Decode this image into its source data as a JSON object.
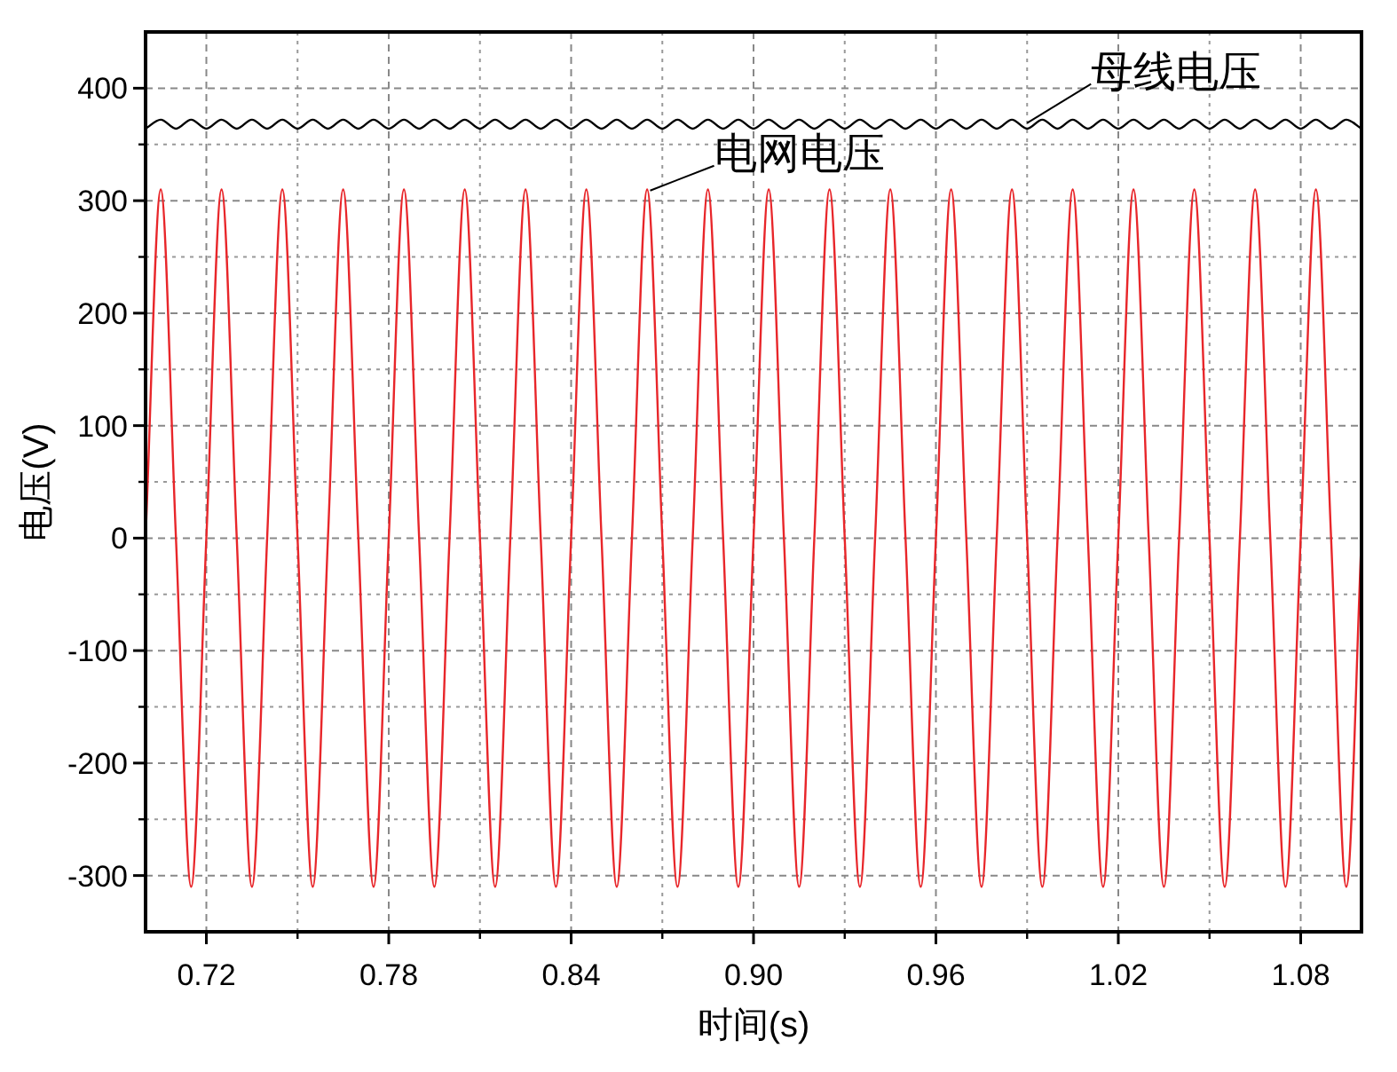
{
  "chart_data": {
    "type": "line",
    "xlabel": "时间(s)",
    "ylabel": "电压(V)",
    "xlim": [
      0.7,
      1.1
    ],
    "ylim": [
      -350,
      450
    ],
    "xticks": [
      0.72,
      0.78,
      0.84,
      {
        "value": 0.9,
        "label": "0.90"
      },
      0.96,
      1.02,
      1.08
    ],
    "yticks": [
      -300,
      -200,
      -100,
      0,
      100,
      200,
      300,
      400
    ],
    "grid": true,
    "x": [
      0.7,
      0.705,
      0.71,
      0.715,
      0.72,
      0.725,
      0.73,
      0.735,
      0.74,
      0.745,
      0.75,
      0.755,
      0.76,
      0.765,
      0.77,
      0.775,
      0.78,
      0.785,
      0.79,
      0.795,
      0.8,
      0.805,
      0.81,
      0.815,
      0.82,
      0.825,
      0.83,
      0.835,
      0.84,
      0.845,
      0.85,
      0.855,
      0.86,
      0.865,
      0.87,
      0.875,
      0.88,
      0.885,
      0.89,
      0.895,
      0.9,
      0.905,
      0.91,
      0.915,
      0.92,
      0.925,
      0.93,
      0.935,
      0.94,
      0.945,
      0.95,
      0.955,
      0.96,
      0.965,
      0.97,
      0.975,
      0.98,
      0.985,
      0.99,
      0.995,
      1.0,
      1.005,
      1.01,
      1.015,
      1.02,
      1.025,
      1.03,
      1.035,
      1.04,
      1.045,
      1.05,
      1.055,
      1.06,
      1.065,
      1.07,
      1.075,
      1.08,
      1.085,
      1.09,
      1.095,
      1.1
    ],
    "series": [
      {
        "color": "#000000",
        "values": [
          364,
          372,
          364,
          372,
          364,
          372,
          364,
          372,
          364,
          372,
          364,
          372,
          364,
          372,
          364,
          372,
          364,
          372,
          364,
          372,
          364,
          372,
          364,
          372,
          364,
          372,
          364,
          372,
          364,
          372,
          364,
          372,
          364,
          372,
          364,
          372,
          364,
          372,
          364,
          372,
          364,
          372,
          364,
          372,
          364,
          372,
          364,
          372,
          364,
          372,
          364,
          372,
          364,
          372,
          364,
          372,
          364,
          372,
          364,
          372,
          364,
          372,
          364,
          372,
          364,
          372,
          364,
          372,
          364,
          372,
          364,
          372,
          364,
          372,
          364,
          372,
          364,
          372,
          364,
          372,
          364
        ]
      },
      {
        "color": "#e8262a",
        "values": [
          0,
          310,
          0,
          -310,
          0,
          310,
          0,
          -310,
          0,
          310,
          0,
          -310,
          0,
          310,
          0,
          -310,
          0,
          310,
          0,
          -310,
          0,
          310,
          0,
          -310,
          0,
          310,
          0,
          -310,
          0,
          310,
          0,
          -310,
          0,
          310,
          0,
          -310,
          0,
          310,
          0,
          -310,
          0,
          310,
          0,
          -310,
          0,
          310,
          0,
          -310,
          0,
          310,
          0,
          -310,
          0,
          310,
          0,
          -310,
          0,
          310,
          0,
          -310,
          0,
          310,
          0,
          -310,
          0,
          310,
          0,
          -310,
          0,
          310,
          0,
          -310,
          0,
          310,
          0,
          -310,
          0,
          310,
          0,
          -310,
          0
        ]
      }
    ],
    "annotations": [
      {
        "text": "母线电压",
        "x": 0.99,
        "y": 369
      },
      {
        "text": "电网电压",
        "x": 0.866,
        "y": 309
      }
    ]
  }
}
